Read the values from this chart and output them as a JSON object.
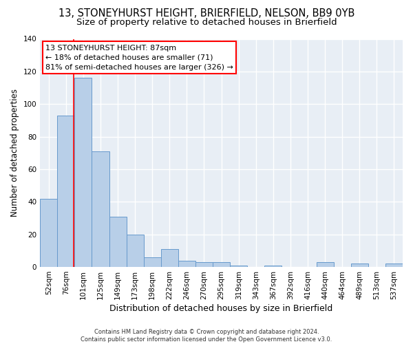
{
  "title1": "13, STONEYHURST HEIGHT, BRIERFIELD, NELSON, BB9 0YB",
  "title2": "Size of property relative to detached houses in Brierfield",
  "xlabel": "Distribution of detached houses by size in Brierfield",
  "ylabel": "Number of detached properties",
  "footnote": "Contains HM Land Registry data © Crown copyright and database right 2024.\nContains public sector information licensed under the Open Government Licence v3.0.",
  "bar_labels": [
    "52sqm",
    "76sqm",
    "101sqm",
    "125sqm",
    "149sqm",
    "173sqm",
    "198sqm",
    "222sqm",
    "246sqm",
    "270sqm",
    "295sqm",
    "319sqm",
    "343sqm",
    "367sqm",
    "392sqm",
    "416sqm",
    "440sqm",
    "464sqm",
    "489sqm",
    "513sqm",
    "537sqm"
  ],
  "bar_values": [
    42,
    93,
    116,
    71,
    31,
    20,
    6,
    11,
    4,
    3,
    3,
    1,
    0,
    1,
    0,
    0,
    3,
    0,
    2,
    0,
    2
  ],
  "bar_color": "#b8cfe8",
  "bar_edge_color": "#6699cc",
  "red_line_x": 1.45,
  "annotation_text": "13 STONEYHURST HEIGHT: 87sqm\n← 18% of detached houses are smaller (71)\n81% of semi-detached houses are larger (326) →",
  "ylim": [
    0,
    140
  ],
  "yticks": [
    0,
    20,
    40,
    60,
    80,
    100,
    120,
    140
  ],
  "background_color": "#e8eef5",
  "grid_color": "white",
  "title1_fontsize": 10.5,
  "title2_fontsize": 9.5,
  "xlabel_fontsize": 9,
  "ylabel_fontsize": 8.5,
  "annot_fontsize": 8,
  "tick_fontsize": 7.5,
  "footnote_fontsize": 6
}
